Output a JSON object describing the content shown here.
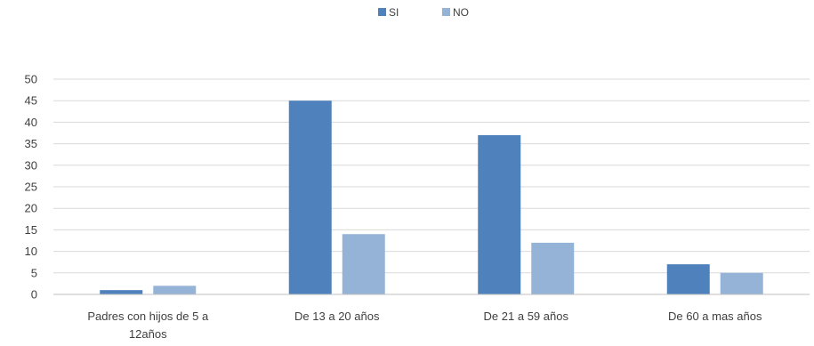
{
  "chart_data": {
    "type": "bar",
    "title": "",
    "xlabel": "",
    "ylabel": "",
    "ylim": [
      0,
      50
    ],
    "yticks": [
      0,
      5,
      10,
      15,
      20,
      25,
      30,
      35,
      40,
      45,
      50
    ],
    "grid": true,
    "legend_position": "top-center",
    "categories": [
      [
        "Padres con hijos de 5 a",
        "12años"
      ],
      [
        "De 13 a 20 años"
      ],
      [
        "De 21 a 59 años"
      ],
      [
        "De 60 a mas años"
      ]
    ],
    "series": [
      {
        "name": "SI",
        "color": "#4f81bd",
        "values": [
          1,
          45,
          37,
          7
        ]
      },
      {
        "name": "NO",
        "color": "#95b3d7",
        "values": [
          2,
          14,
          12,
          5
        ]
      }
    ]
  }
}
